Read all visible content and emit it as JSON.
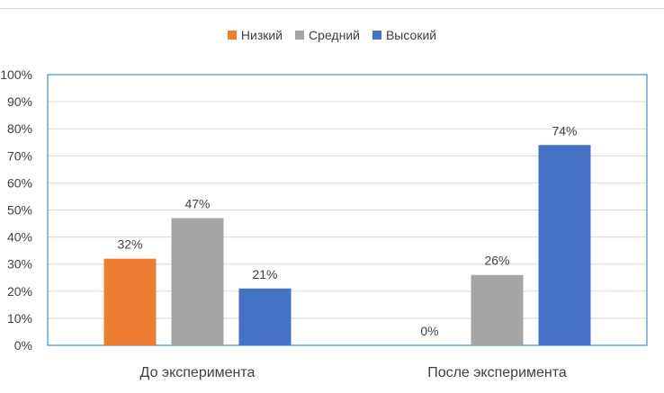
{
  "chart_data": {
    "type": "bar",
    "categories": [
      "До эксперимента",
      "После эксперимента"
    ],
    "series": [
      {
        "name": "Низкий",
        "values": [
          32,
          0
        ],
        "color": "#ED7D31"
      },
      {
        "name": "Средний",
        "values": [
          47,
          26
        ],
        "color": "#A5A5A5"
      },
      {
        "name": "Высокий",
        "values": [
          21,
          74
        ],
        "color": "#4472C4"
      }
    ],
    "data_labels": [
      [
        "32%",
        "0%"
      ],
      [
        "47%",
        "26%"
      ],
      [
        "21%",
        "74%"
      ]
    ],
    "ylim": [
      0,
      100
    ],
    "y_ticks": [
      "0%",
      "10%",
      "20%",
      "30%",
      "40%",
      "50%",
      "60%",
      "70%",
      "80%",
      "90%",
      "100%"
    ],
    "grid": true,
    "legend_position": "top",
    "xlabel": "",
    "ylabel": ""
  }
}
